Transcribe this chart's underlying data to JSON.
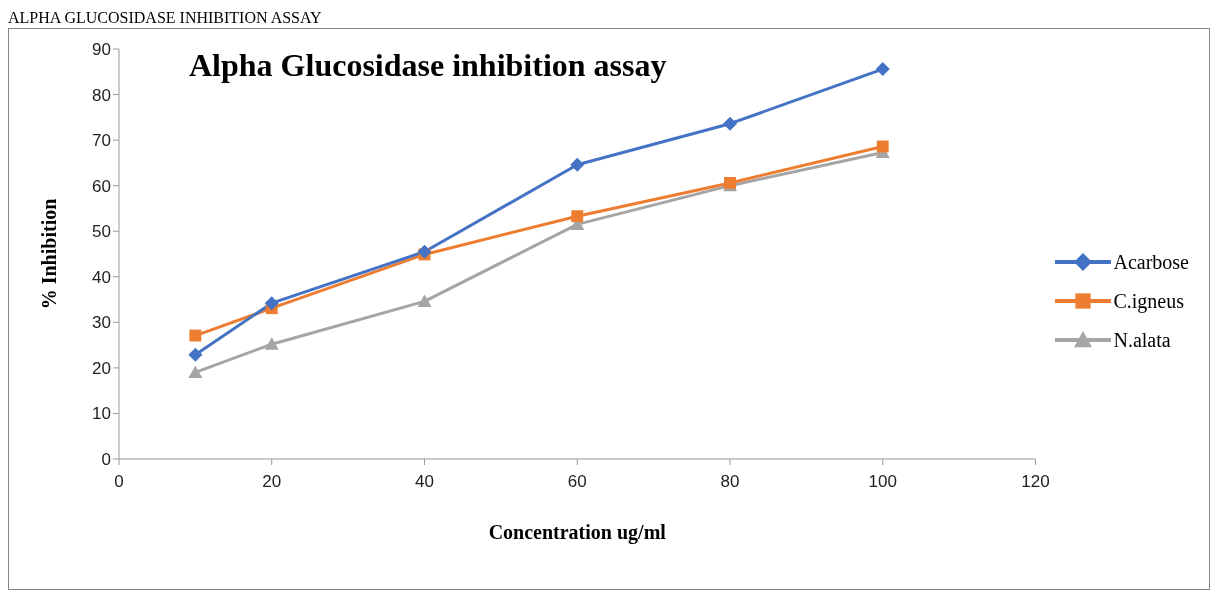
{
  "chart_data": {
    "type": "line",
    "title": "Alpha Glucosidase inhibition assay",
    "xlabel": "Concentration ug/ml",
    "ylabel": "% Inhibition",
    "annotations": [
      "ALPHA GLUCOSIDASE INHIBITION ASSAY"
    ],
    "x": [
      10,
      20,
      40,
      60,
      80,
      100
    ],
    "series": [
      {
        "name": "Acarbose",
        "color": "#4472c4",
        "marker": "diamond",
        "values": [
          22.9,
          34.2,
          45.5,
          64.6,
          73.6,
          85.6
        ]
      },
      {
        "name": "C.igneus",
        "color": "#ed7d31",
        "marker": "square",
        "values": [
          27.1,
          33.1,
          44.9,
          53.3,
          60.6,
          68.6
        ]
      },
      {
        "name": "N.alata",
        "color": "#a5a5a5",
        "marker": "triangle",
        "values": [
          19,
          25.2,
          34.6,
          51.5,
          60,
          67.3
        ]
      }
    ],
    "xlim": [
      0,
      120
    ],
    "xticks": [
      0,
      20,
      40,
      60,
      80,
      100,
      120
    ],
    "ylim": [
      0,
      90
    ],
    "yticks": [
      0,
      10,
      20,
      30,
      40,
      50,
      60,
      70,
      80,
      90
    ],
    "grid": false,
    "legend": "right",
    "line_style": "solid"
  }
}
